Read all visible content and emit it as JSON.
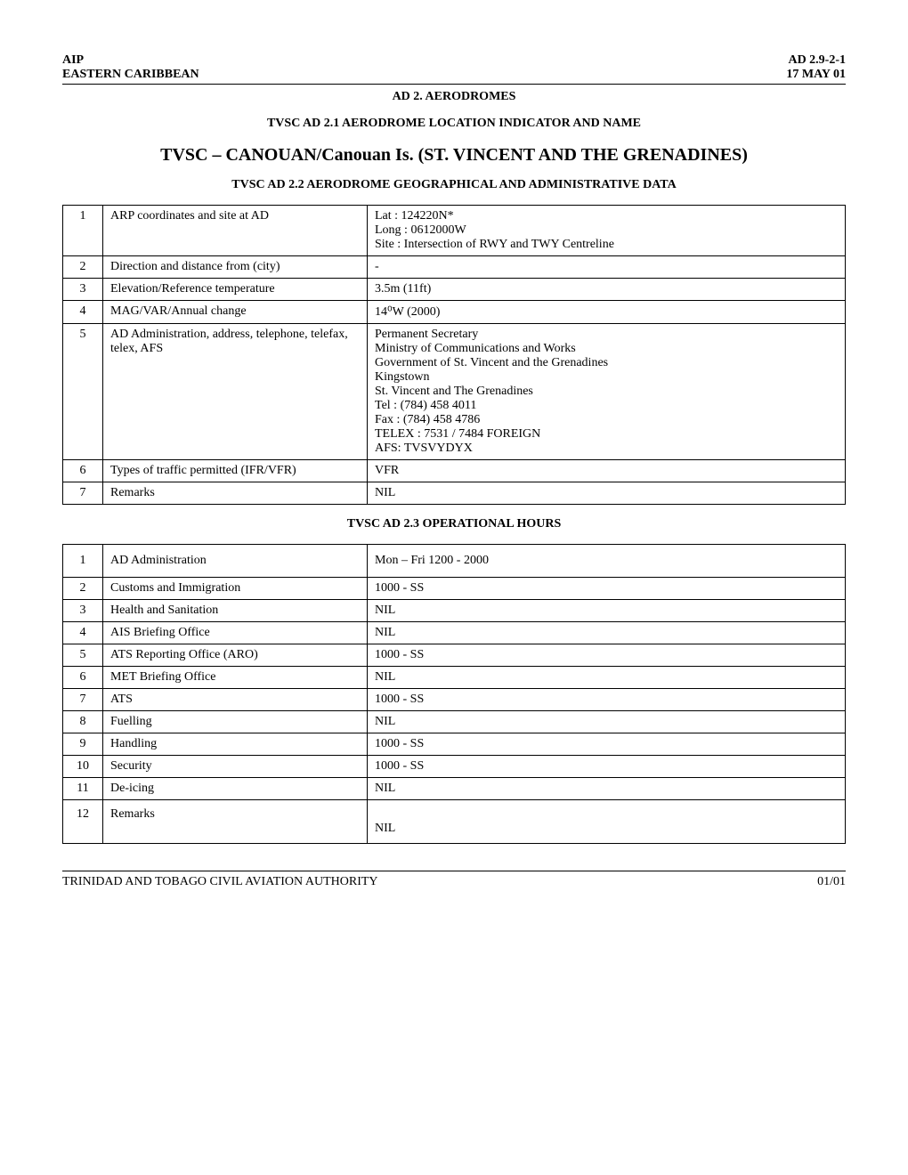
{
  "header": {
    "left_line1": "AIP",
    "left_line2": "EASTERN CARIBBEAN",
    "right_line1": "AD  2.9-2-1",
    "right_line2": "17 MAY 01"
  },
  "titles": {
    "section": "AD 2. AERODROMES",
    "sub1": "TVSC AD 2.1 AERODROME LOCATION INDICATOR AND NAME",
    "main": "TVSC – CANOUAN/Canouan Is. (ST. VINCENT AND THE GRENADINES)",
    "sub2": "TVSC AD 2.2 AERODROME GEOGRAPHICAL AND ADMINISTRATIVE DATA",
    "sub3": "TVSC AD 2.3 OPERATIONAL HOURS"
  },
  "table1": {
    "rows": [
      {
        "n": "1",
        "label": "ARP coordinates and site at AD",
        "value": "Lat    : 124220N*\nLong : 0612000W\nSite   :  Intersection of RWY and TWY Centreline"
      },
      {
        "n": "2",
        "label": "Direction and distance from (city)",
        "value": "-"
      },
      {
        "n": "3",
        "label": "Elevation/Reference temperature",
        "value": "3.5m (11ft)"
      },
      {
        "n": "4",
        "label": "MAG/VAR/Annual change",
        "value": "14⁰W (2000)"
      },
      {
        "n": "5",
        "label": "AD Administration, address, telephone, telefax, telex, AFS",
        "value": "Permanent Secretary\nMinistry of Communications and Works\nGovernment of St. Vincent and the Grenadines\nKingstown\nSt. Vincent and The Grenadines\nTel   : (784) 458 4011\nFax :  (784) 458 4786\nTELEX : 7531 / 7484 FOREIGN\nAFS: TVSVYDYX"
      },
      {
        "n": "6",
        "label": "Types of traffic permitted (IFR/VFR)",
        "value": "VFR"
      },
      {
        "n": "7",
        "label": "Remarks",
        "value": "NIL"
      }
    ]
  },
  "table2": {
    "rows": [
      {
        "n": "1",
        "label": "AD Administration",
        "value": "Mon – Fri 1200 - 2000"
      },
      {
        "n": "2",
        "label": "Customs and Immigration",
        "value": "1000 - SS"
      },
      {
        "n": "3",
        "label": "Health and Sanitation",
        "value": "NIL"
      },
      {
        "n": "4",
        "label": "AIS Briefing Office",
        "value": "NIL"
      },
      {
        "n": "5",
        "label": "ATS Reporting Office (ARO)",
        "value": "1000 - SS"
      },
      {
        "n": "6",
        "label": "MET Briefing Office",
        "value": "NIL"
      },
      {
        "n": "7",
        "label": "ATS",
        "value": "1000 - SS"
      },
      {
        "n": "8",
        "label": "Fuelling",
        "value": "NIL"
      },
      {
        "n": "9",
        "label": "Handling",
        "value": "1000 - SS"
      },
      {
        "n": "10",
        "label": "Security",
        "value": "1000 - SS"
      },
      {
        "n": "11",
        "label": "De-icing",
        "value": "NIL"
      },
      {
        "n": "12",
        "label": "Remarks",
        "value": "\nNIL"
      }
    ]
  },
  "footer": {
    "left": "TRINIDAD AND TOBAGO CIVIL AVIATION AUTHORITY",
    "right": "01/01"
  }
}
